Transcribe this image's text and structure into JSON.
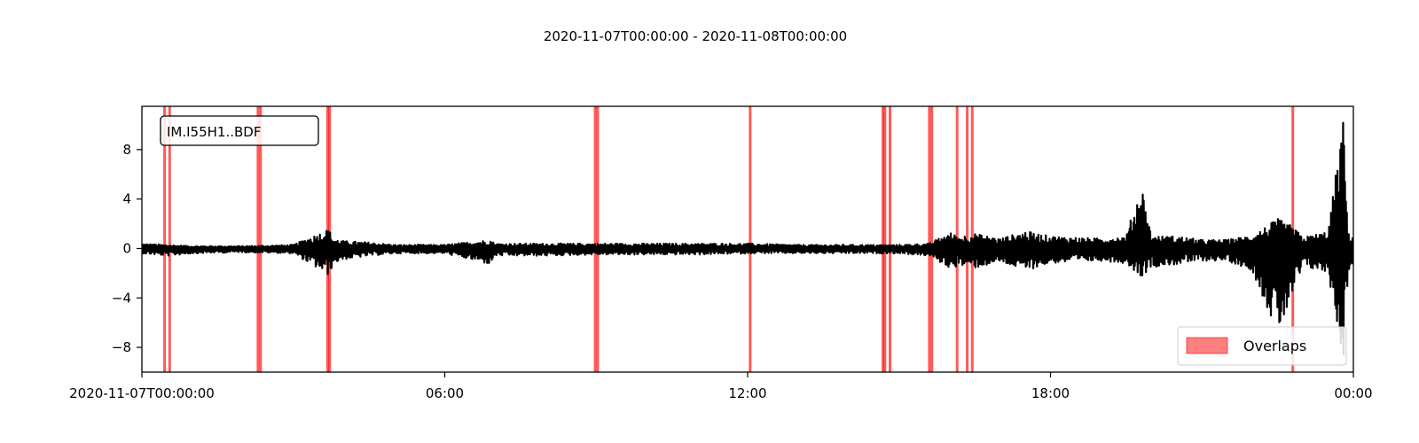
{
  "chart_data": {
    "type": "line",
    "title": "2020-11-07T00:00:00  -  2020-11-08T00:00:00",
    "station_label": "IM.I55H1..BDF",
    "x_ticks": [
      "2020-11-07T00:00:00",
      "06:00",
      "12:00",
      "18:00",
      "00:00"
    ],
    "x_tick_hours": [
      0,
      6,
      12,
      18,
      24
    ],
    "xlim_hours": [
      0,
      24
    ],
    "y_ticks": [
      "8",
      "4",
      "0",
      "−4",
      "−8"
    ],
    "y_tick_values": [
      8,
      4,
      0,
      -4,
      -8
    ],
    "ylim": [
      -10,
      11.5
    ],
    "grid": false,
    "legend": {
      "label": "Overlaps",
      "placement": "lower-right"
    },
    "colors": {
      "trace": "#000000",
      "overlap": "#ff0000"
    },
    "overlaps_hours": [
      0.45,
      0.55,
      2.3,
      2.35,
      3.68,
      3.72,
      8.98,
      9.03,
      12.05,
      14.68,
      14.72,
      14.82,
      15.6,
      15.65,
      16.15,
      16.35,
      16.45,
      22.8
    ],
    "series": [
      {
        "values_hours": [
          0,
          0.5,
          1,
          2,
          3,
          3.7,
          3.8,
          4,
          4.5,
          5,
          6,
          6.9,
          7,
          8,
          9,
          10,
          11,
          12,
          13,
          14,
          15,
          15.6,
          16,
          16.2,
          16.5,
          17,
          17.5,
          18,
          19,
          19.5,
          19.8,
          20,
          20.5,
          21,
          21.5,
          22,
          22.5,
          22.8,
          23,
          23.5,
          23.8,
          23.9,
          24
        ],
        "envelope_max": [
          0.4,
          0.3,
          0.2,
          0.2,
          0.3,
          1.6,
          0.8,
          0.6,
          0.5,
          0.3,
          0.3,
          0.7,
          0.4,
          0.4,
          0.4,
          0.4,
          0.4,
          0.4,
          0.3,
          0.3,
          0.3,
          0.4,
          1.3,
          1.0,
          1.2,
          0.8,
          1.4,
          1.0,
          0.8,
          1.0,
          5.4,
          1.0,
          1.0,
          0.7,
          0.7,
          1.1,
          2.4,
          1.8,
          0.9,
          1.4,
          10.6,
          1.2,
          1.0
        ],
        "envelope_min": [
          -0.4,
          -0.6,
          -0.4,
          -0.3,
          -0.4,
          -2.2,
          -1.2,
          -0.9,
          -0.6,
          -0.4,
          -0.4,
          -1.3,
          -0.6,
          -0.6,
          -0.5,
          -0.5,
          -0.5,
          -0.4,
          -0.4,
          -0.4,
          -0.4,
          -0.6,
          -1.6,
          -1.4,
          -1.6,
          -1.1,
          -1.8,
          -1.2,
          -1.0,
          -1.2,
          -2.3,
          -1.5,
          -1.3,
          -1.0,
          -1.0,
          -1.8,
          -7.0,
          -4.0,
          -1.5,
          -2.0,
          -9.2,
          -1.8,
          -1.5
        ]
      }
    ]
  }
}
